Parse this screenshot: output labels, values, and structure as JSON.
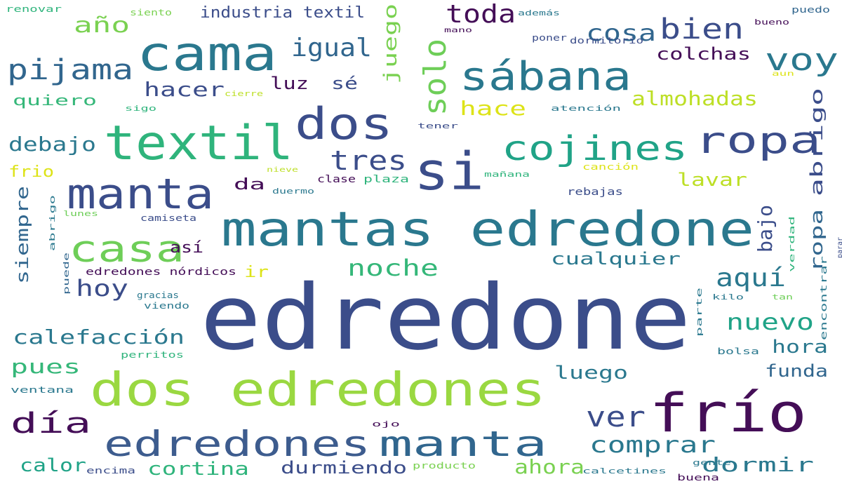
{
  "word_cloud": {
    "words": [
      {
        "text": "edredone",
        "color": "#3b4d8a"
      },
      {
        "text": "dos edredones",
        "color": "#9ad841"
      },
      {
        "text": "mantas edredone",
        "color": "#2a788e"
      },
      {
        "text": "frío",
        "color": "#440e57"
      },
      {
        "text": "edredones",
        "color": "#3d5c8e"
      },
      {
        "text": "manta",
        "color": "#3b4d8a"
      },
      {
        "text": "manta",
        "color": "#31668e"
      },
      {
        "text": "textil",
        "color": "#2fb47c"
      },
      {
        "text": "cama",
        "color": "#2a788e"
      },
      {
        "text": "si",
        "color": "#3b4d8a"
      },
      {
        "text": "dos",
        "color": "#3b4d8a"
      },
      {
        "text": "sábana",
        "color": "#2a788e"
      },
      {
        "text": "ropa",
        "color": "#3b4d8a"
      },
      {
        "text": "cojines",
        "color": "#20a387"
      },
      {
        "text": "casa",
        "color": "#6ece58"
      },
      {
        "text": "pijama",
        "color": "#31668e"
      },
      {
        "text": "voy",
        "color": "#2a788e"
      },
      {
        "text": "bien",
        "color": "#3b4d8a"
      },
      {
        "text": "cosa",
        "color": "#31668e"
      },
      {
        "text": "toda",
        "color": "#440e57"
      },
      {
        "text": "igual",
        "color": "#31668e"
      },
      {
        "text": "solo",
        "color": "#6ece58"
      },
      {
        "text": "juego",
        "color": "#7ad151"
      },
      {
        "text": "año",
        "color": "#7ad151"
      },
      {
        "text": "industria textil",
        "color": "#3b4d8a"
      },
      {
        "text": "tres",
        "color": "#3b4d8a"
      },
      {
        "text": "almohadas",
        "color": "#bddf26"
      },
      {
        "text": "colchas",
        "color": "#440e57"
      },
      {
        "text": "hacer",
        "color": "#3b4d8a"
      },
      {
        "text": "luz",
        "color": "#440e57"
      },
      {
        "text": "sé",
        "color": "#3b4d8a"
      },
      {
        "text": "hace",
        "color": "#dde318"
      },
      {
        "text": "quiero",
        "color": "#35b779"
      },
      {
        "text": "debajo",
        "color": "#2a788e"
      },
      {
        "text": "frio",
        "color": "#dde318"
      },
      {
        "text": "da",
        "color": "#440e57"
      },
      {
        "text": "lavar",
        "color": "#bddf26"
      },
      {
        "text": "abrigo",
        "color": "#3b4d8a"
      },
      {
        "text": "ropa",
        "color": "#31668e"
      },
      {
        "text": "bajo",
        "color": "#3b4d8a"
      },
      {
        "text": "siempre",
        "color": "#31668e"
      },
      {
        "text": "así",
        "color": "#440e57"
      },
      {
        "text": "noche",
        "color": "#35b779"
      },
      {
        "text": "ir",
        "color": "#dde318"
      },
      {
        "text": "cualquier",
        "color": "#2a788e"
      },
      {
        "text": "aquí",
        "color": "#2a788e"
      },
      {
        "text": "hoy",
        "color": "#3b4d8a"
      },
      {
        "text": "calefacción",
        "color": "#2a788e"
      },
      {
        "text": "nuevo",
        "color": "#20a387"
      },
      {
        "text": "hora",
        "color": "#2a788e"
      },
      {
        "text": "pues",
        "color": "#35b779"
      },
      {
        "text": "luego",
        "color": "#2a788e"
      },
      {
        "text": "funda",
        "color": "#31668e"
      },
      {
        "text": "día",
        "color": "#440e57"
      },
      {
        "text": "ver",
        "color": "#3b4d8a"
      },
      {
        "text": "comprar",
        "color": "#2a788e"
      },
      {
        "text": "calor",
        "color": "#20a387"
      },
      {
        "text": "cortina",
        "color": "#2fb47c"
      },
      {
        "text": "durmiendo",
        "color": "#3b4d8a"
      },
      {
        "text": "ahora",
        "color": "#7ad151"
      },
      {
        "text": "dormir",
        "color": "#2a788e"
      },
      {
        "text": "renovar",
        "color": "#2fb47c"
      },
      {
        "text": "siento",
        "color": "#7ad151"
      },
      {
        "text": "además",
        "color": "#2a788e"
      },
      {
        "text": "puedo",
        "color": "#31668e"
      },
      {
        "text": "mano",
        "color": "#440e57"
      },
      {
        "text": "bueno",
        "color": "#440e57"
      },
      {
        "text": "poner",
        "color": "#3b4d8a"
      },
      {
        "text": "dormitorio",
        "color": "#3b4d8a"
      },
      {
        "text": "aun",
        "color": "#dde318"
      },
      {
        "text": "cierre",
        "color": "#bddf26"
      },
      {
        "text": "sigo",
        "color": "#2fb47c"
      },
      {
        "text": "atención",
        "color": "#2a788e"
      },
      {
        "text": "tener",
        "color": "#3b4d8a"
      },
      {
        "text": "nieve",
        "color": "#bddf26"
      },
      {
        "text": "clase",
        "color": "#440e57"
      },
      {
        "text": "plaza",
        "color": "#2fb47c"
      },
      {
        "text": "mañana",
        "color": "#2fb47c"
      },
      {
        "text": "canción",
        "color": "#dde318"
      },
      {
        "text": "duermo",
        "color": "#2a788e"
      },
      {
        "text": "rebajas",
        "color": "#3b4d8a"
      },
      {
        "text": "abrigo",
        "color": "#2a788e"
      },
      {
        "text": "lunes",
        "color": "#6ece58"
      },
      {
        "text": "camiseta",
        "color": "#3b4d8a"
      },
      {
        "text": "verdad",
        "color": "#2fb47c"
      },
      {
        "text": "parar",
        "color": "#3b4d8a"
      },
      {
        "text": "edredones nórdicos",
        "color": "#440e57"
      },
      {
        "text": "puede",
        "color": "#31668e"
      },
      {
        "text": "gracias",
        "color": "#2a788e"
      },
      {
        "text": "viendo",
        "color": "#2a788e"
      },
      {
        "text": "kilo",
        "color": "#2a788e"
      },
      {
        "text": "tan",
        "color": "#6ece58"
      },
      {
        "text": "encontrar",
        "color": "#2a788e"
      },
      {
        "text": "parte",
        "color": "#2a788e"
      },
      {
        "text": "bolsa",
        "color": "#2a788e"
      },
      {
        "text": "perritos",
        "color": "#2fb47c"
      },
      {
        "text": "ventana",
        "color": "#2a788e"
      },
      {
        "text": "ojo",
        "color": "#440e57"
      },
      {
        "text": "encima",
        "color": "#3b4d8a"
      },
      {
        "text": "producto",
        "color": "#7ad151"
      },
      {
        "text": "calcetines",
        "color": "#2a788e"
      },
      {
        "text": "gente",
        "color": "#2a788e"
      },
      {
        "text": "buena",
        "color": "#440e57"
      }
    ]
  }
}
